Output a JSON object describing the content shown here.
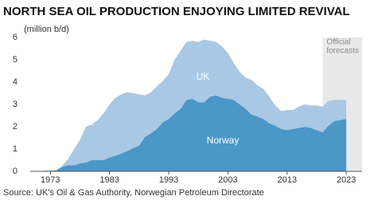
{
  "chart_data": {
    "type": "stacked_area",
    "title": "NORTH SEA OIL PRODUCTION ENJOYING LIMITED REVIVAL",
    "y_label": "(million b/d)",
    "source": "Source: UK's Oil & Gas Authority, Norwegian Petroleum Directorate",
    "annotation_lines": [
      "Official",
      "forecasts"
    ],
    "forecast_from": 2019,
    "x": [
      1970,
      1971,
      1972,
      1973,
      1974,
      1975,
      1976,
      1977,
      1978,
      1979,
      1980,
      1981,
      1982,
      1983,
      1984,
      1985,
      1986,
      1987,
      1988,
      1989,
      1990,
      1991,
      1992,
      1993,
      1994,
      1995,
      1996,
      1997,
      1998,
      1999,
      2000,
      2001,
      2002,
      2003,
      2004,
      2005,
      2006,
      2007,
      2008,
      2009,
      2010,
      2011,
      2012,
      2013,
      2014,
      2015,
      2016,
      2017,
      2018,
      2019,
      2020,
      2021,
      2022,
      2023
    ],
    "series": [
      {
        "name": "Norway",
        "color": "#4b97c8",
        "values": [
          0,
          0.01,
          0.03,
          0.03,
          0.04,
          0.2,
          0.28,
          0.28,
          0.35,
          0.4,
          0.5,
          0.5,
          0.5,
          0.62,
          0.7,
          0.8,
          0.9,
          1.05,
          1.15,
          1.55,
          1.7,
          1.9,
          2.2,
          2.35,
          2.6,
          2.8,
          3.2,
          3.25,
          3.1,
          3.1,
          3.35,
          3.4,
          3.3,
          3.25,
          3.2,
          3.0,
          2.8,
          2.55,
          2.45,
          2.35,
          2.15,
          2.05,
          1.9,
          1.85,
          1.9,
          1.95,
          2.0,
          1.95,
          1.85,
          1.75,
          2.05,
          2.25,
          2.3,
          2.35
        ]
      },
      {
        "name": "UK",
        "color": "#a9c8e3",
        "values": [
          0,
          0,
          0,
          0,
          0.01,
          0.05,
          0.27,
          0.72,
          1.05,
          1.6,
          1.6,
          1.8,
          2.1,
          2.38,
          2.6,
          2.65,
          2.65,
          2.45,
          2.3,
          1.85,
          1.85,
          1.9,
          1.85,
          2.0,
          2.4,
          2.6,
          2.6,
          2.6,
          2.7,
          2.8,
          2.5,
          2.4,
          2.3,
          2.05,
          1.65,
          1.45,
          1.4,
          1.55,
          1.4,
          1.35,
          1.2,
          0.9,
          0.8,
          0.9,
          0.85,
          0.95,
          1.0,
          1.0,
          1.1,
          1.15,
          1.1,
          0.95,
          0.9,
          0.85
        ]
      }
    ],
    "xlim": [
      1969.6,
      2024.2
    ],
    "ylim": [
      0,
      6
    ],
    "xticks": [
      1973,
      1983,
      1993,
      2003,
      2013,
      2023
    ],
    "yticks": [
      0,
      1,
      2,
      3,
      4,
      5,
      6
    ],
    "grid": false
  }
}
